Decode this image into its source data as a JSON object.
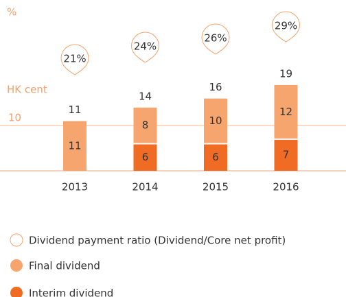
{
  "chart_data": {
    "type": "bar",
    "stacked": true,
    "categories": [
      "2013",
      "2014",
      "2015",
      "2016"
    ],
    "ylabel": "HK cent",
    "ylim": [
      0,
      24
    ],
    "yticks": [
      10
    ],
    "y2label": "%",
    "y2lim": [
      15,
      35
    ],
    "series": [
      {
        "name": "Final dividend",
        "color": "#f6a56f",
        "values": [
          11,
          8,
          10,
          12
        ]
      },
      {
        "name": "Interim dividend",
        "color": "#f06c24",
        "values": [
          null,
          6,
          6,
          7
        ]
      }
    ],
    "totals": [
      11,
      14,
      16,
      19
    ],
    "ratio": {
      "name": "Dividend payment ratio (Dividend/Core net profit)",
      "color": "#f5a36d",
      "axis": "y2",
      "values": [
        21,
        24,
        26,
        29
      ],
      "value_labels": [
        "21%",
        "24%",
        "26%",
        "29%"
      ]
    }
  }
}
